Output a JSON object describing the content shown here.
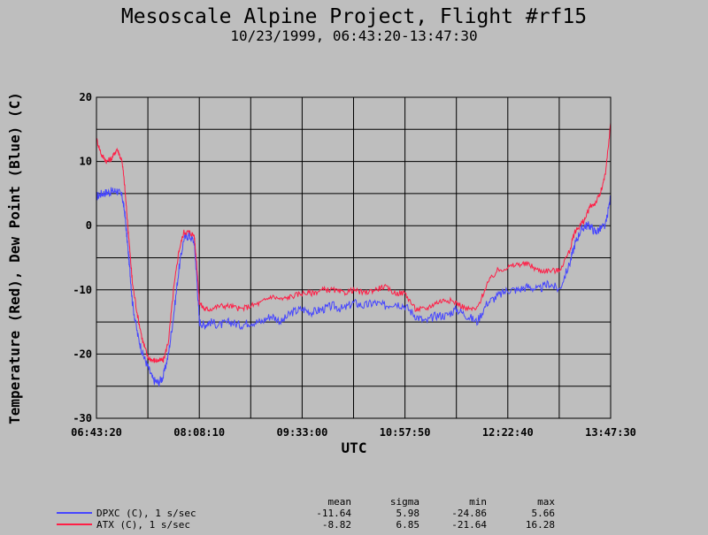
{
  "chart_data": {
    "type": "line",
    "title": "Mesoscale Alpine Project, Flight #rf15",
    "subtitle": "10/23/1999, 06:43:20-13:47:30",
    "xlabel": "UTC",
    "ylabel": "Temperature (Red), Dew Point (Blue) (C)",
    "x_ticks": [
      "06:43:20",
      "08:08:10",
      "09:33:00",
      "10:57:50",
      "12:22:40",
      "13:47:30"
    ],
    "y_ticks": [
      20,
      10,
      0,
      -10,
      -20,
      -30
    ],
    "xlim": [
      0,
      10
    ],
    "ylim": [
      -30,
      20
    ],
    "grid": true,
    "series": [
      {
        "name": "DPXC (C), 1 s/sec",
        "color": "#4646ff",
        "x": [
          0,
          0.1,
          0.2,
          0.3,
          0.4,
          0.5,
          0.55,
          0.6,
          0.65,
          0.7,
          0.8,
          0.9,
          1.0,
          1.1,
          1.2,
          1.3,
          1.4,
          1.5,
          1.6,
          1.7,
          1.8,
          1.9,
          1.95,
          2.0,
          2.1,
          2.2,
          2.4,
          2.6,
          2.8,
          3.0,
          3.2,
          3.4,
          3.6,
          3.8,
          4.0,
          4.2,
          4.4,
          4.6,
          4.8,
          5.0,
          5.2,
          5.4,
          5.6,
          5.8,
          6.0,
          6.2,
          6.4,
          6.6,
          6.8,
          7.0,
          7.2,
          7.4,
          7.6,
          7.8,
          8.0,
          8.2,
          8.4,
          8.6,
          8.8,
          9.0,
          9.2,
          9.3,
          9.4,
          9.5,
          9.6,
          9.7,
          9.8,
          9.9,
          10.0
        ],
        "y": [
          4.5,
          5.0,
          5.2,
          5.3,
          5.5,
          4.5,
          2.0,
          -2.5,
          -7,
          -12,
          -17,
          -20,
          -22,
          -24,
          -24.5,
          -23.5,
          -20,
          -14,
          -7,
          -2,
          -1.5,
          -2.5,
          -8,
          -15,
          -15.5,
          -15,
          -15.5,
          -15,
          -15.5,
          -15,
          -15,
          -14,
          -15,
          -13.5,
          -13,
          -13.5,
          -13,
          -12.5,
          -13,
          -12,
          -12.5,
          -12,
          -12.5,
          -12,
          -12.5,
          -14,
          -15,
          -14,
          -14,
          -13,
          -14,
          -15,
          -12,
          -11,
          -10,
          -10,
          -9.5,
          -10,
          -9,
          -10,
          -6,
          -3,
          -1,
          0,
          0,
          -1,
          -0.5,
          0,
          4.5
        ]
      },
      {
        "name": "ATX (C), 1 s/sec",
        "color": "#ff1e46",
        "x": [
          0,
          0.1,
          0.2,
          0.3,
          0.4,
          0.5,
          0.55,
          0.6,
          0.65,
          0.7,
          0.8,
          0.9,
          1.0,
          1.1,
          1.2,
          1.3,
          1.4,
          1.5,
          1.6,
          1.7,
          1.8,
          1.9,
          1.95,
          2.0,
          2.1,
          2.2,
          2.4,
          2.6,
          2.8,
          3.0,
          3.2,
          3.4,
          3.6,
          3.8,
          4.0,
          4.2,
          4.4,
          4.6,
          4.8,
          5.0,
          5.2,
          5.4,
          5.6,
          5.8,
          6.0,
          6.2,
          6.4,
          6.6,
          6.8,
          7.0,
          7.2,
          7.4,
          7.6,
          7.8,
          8.0,
          8.2,
          8.4,
          8.6,
          8.8,
          9.0,
          9.2,
          9.3,
          9.4,
          9.5,
          9.6,
          9.7,
          9.8,
          9.9,
          10.0
        ],
        "y": [
          13.5,
          11,
          10,
          10.5,
          12,
          10,
          6,
          1,
          -4,
          -9,
          -14,
          -18,
          -20.5,
          -21,
          -21,
          -21,
          -18,
          -10,
          -4,
          -1,
          -1,
          -1.5,
          -6,
          -12,
          -13,
          -13,
          -12.5,
          -12.5,
          -13,
          -12.5,
          -12,
          -11,
          -11.5,
          -11,
          -10.5,
          -10.5,
          -10,
          -10,
          -10.5,
          -10,
          -10.5,
          -10,
          -9.5,
          -10.5,
          -10.5,
          -13,
          -13,
          -12,
          -11.5,
          -12,
          -13,
          -13,
          -9,
          -7,
          -6.5,
          -6,
          -6,
          -7,
          -7,
          -7,
          -4,
          -1,
          0,
          1,
          3,
          3.5,
          5,
          8,
          16
        ]
      }
    ],
    "stats_headers": [
      "mean",
      "sigma",
      "min",
      "max"
    ],
    "stats": [
      {
        "label": "DPXC (C), 1 s/sec",
        "color": "#4646ff",
        "values": [
          "-11.64",
          "5.98",
          "-24.86",
          "5.66"
        ]
      },
      {
        "label": "ATX (C), 1 s/sec",
        "color": "#ff1e46",
        "values": [
          "-8.82",
          "6.85",
          "-21.64",
          "16.28"
        ]
      }
    ]
  }
}
